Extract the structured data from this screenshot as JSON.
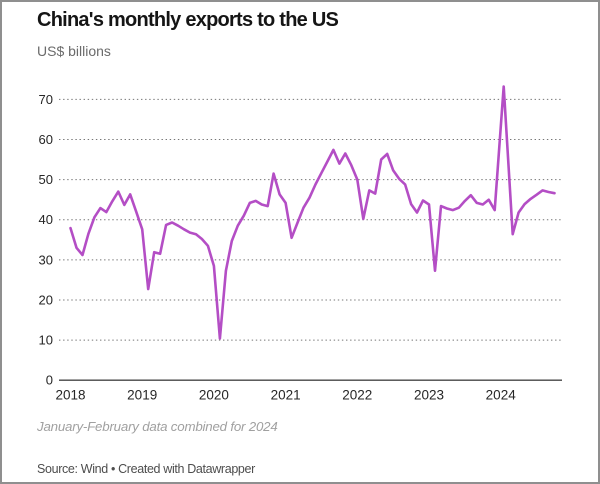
{
  "header": {
    "title": "China's monthly exports to the US",
    "subtitle": "US$ billions"
  },
  "footer": {
    "note": "January-February data combined for 2024",
    "source_prefix": "Source: Wind",
    "separator": "•",
    "attribution": "Created with Datawrapper"
  },
  "chart_data": {
    "type": "line",
    "title": "China's monthly exports to the US",
    "ylabel": "US$ billions",
    "xlabel": "",
    "x_tick_labels": [
      "2018",
      "2019",
      "2020",
      "2021",
      "2022",
      "2023",
      "2024"
    ],
    "y_ticks": [
      0,
      10,
      20,
      30,
      40,
      50,
      60,
      70
    ],
    "ylim": [
      0,
      75
    ],
    "xlim_years": [
      2017.85,
      2024.85
    ],
    "grid": "dotted-horizontal",
    "legend": "none",
    "line_color": "#b44ec5",
    "annotation": "January-February data combined for 2024",
    "series": [
      {
        "name": "China monthly exports to the US (US$ billions)",
        "points": [
          [
            2018.0,
            37.9
          ],
          [
            2018.083,
            33.0
          ],
          [
            2018.167,
            31.2
          ],
          [
            2018.25,
            36.5
          ],
          [
            2018.333,
            40.6
          ],
          [
            2018.417,
            42.9
          ],
          [
            2018.5,
            41.9
          ],
          [
            2018.583,
            44.6
          ],
          [
            2018.667,
            47.0
          ],
          [
            2018.75,
            43.7
          ],
          [
            2018.833,
            46.3
          ],
          [
            2018.917,
            42.0
          ],
          [
            2019.0,
            37.6
          ],
          [
            2019.083,
            22.7
          ],
          [
            2019.167,
            31.9
          ],
          [
            2019.25,
            31.5
          ],
          [
            2019.333,
            38.7
          ],
          [
            2019.417,
            39.3
          ],
          [
            2019.5,
            38.5
          ],
          [
            2019.583,
            37.6
          ],
          [
            2019.667,
            36.8
          ],
          [
            2019.75,
            36.4
          ],
          [
            2019.833,
            35.2
          ],
          [
            2019.917,
            33.5
          ],
          [
            2020.0,
            28.5
          ],
          [
            2020.083,
            10.4
          ],
          [
            2020.167,
            27.3
          ],
          [
            2020.25,
            34.7
          ],
          [
            2020.333,
            38.5
          ],
          [
            2020.417,
            41.0
          ],
          [
            2020.5,
            44.2
          ],
          [
            2020.583,
            44.7
          ],
          [
            2020.667,
            43.8
          ],
          [
            2020.75,
            43.4
          ],
          [
            2020.833,
            51.5
          ],
          [
            2020.917,
            46.3
          ],
          [
            2021.0,
            44.2
          ],
          [
            2021.083,
            35.5
          ],
          [
            2021.167,
            39.3
          ],
          [
            2021.25,
            43.0
          ],
          [
            2021.333,
            45.5
          ],
          [
            2021.417,
            48.8
          ],
          [
            2021.5,
            51.7
          ],
          [
            2021.583,
            54.5
          ],
          [
            2021.667,
            57.4
          ],
          [
            2021.75,
            54.0
          ],
          [
            2021.833,
            56.5
          ],
          [
            2021.917,
            53.6
          ],
          [
            2022.0,
            50.0
          ],
          [
            2022.083,
            40.2
          ],
          [
            2022.167,
            47.3
          ],
          [
            2022.25,
            46.5
          ],
          [
            2022.333,
            55.0
          ],
          [
            2022.417,
            56.4
          ],
          [
            2022.5,
            52.3
          ],
          [
            2022.583,
            50.2
          ],
          [
            2022.667,
            48.8
          ],
          [
            2022.75,
            43.9
          ],
          [
            2022.833,
            41.8
          ],
          [
            2022.917,
            44.8
          ],
          [
            2023.0,
            43.8
          ],
          [
            2023.083,
            27.3
          ],
          [
            2023.167,
            43.4
          ],
          [
            2023.25,
            42.8
          ],
          [
            2023.333,
            42.4
          ],
          [
            2023.417,
            43.0
          ],
          [
            2023.5,
            44.7
          ],
          [
            2023.583,
            46.1
          ],
          [
            2023.667,
            44.2
          ],
          [
            2023.75,
            43.8
          ],
          [
            2023.833,
            45.0
          ],
          [
            2023.917,
            42.4
          ],
          [
            2024.042,
            73.2
          ],
          [
            2024.167,
            36.4
          ],
          [
            2024.25,
            41.8
          ],
          [
            2024.333,
            43.9
          ],
          [
            2024.417,
            45.2
          ],
          [
            2024.5,
            46.2
          ],
          [
            2024.583,
            47.3
          ],
          [
            2024.667,
            46.9
          ],
          [
            2024.75,
            46.6
          ]
        ]
      }
    ]
  }
}
